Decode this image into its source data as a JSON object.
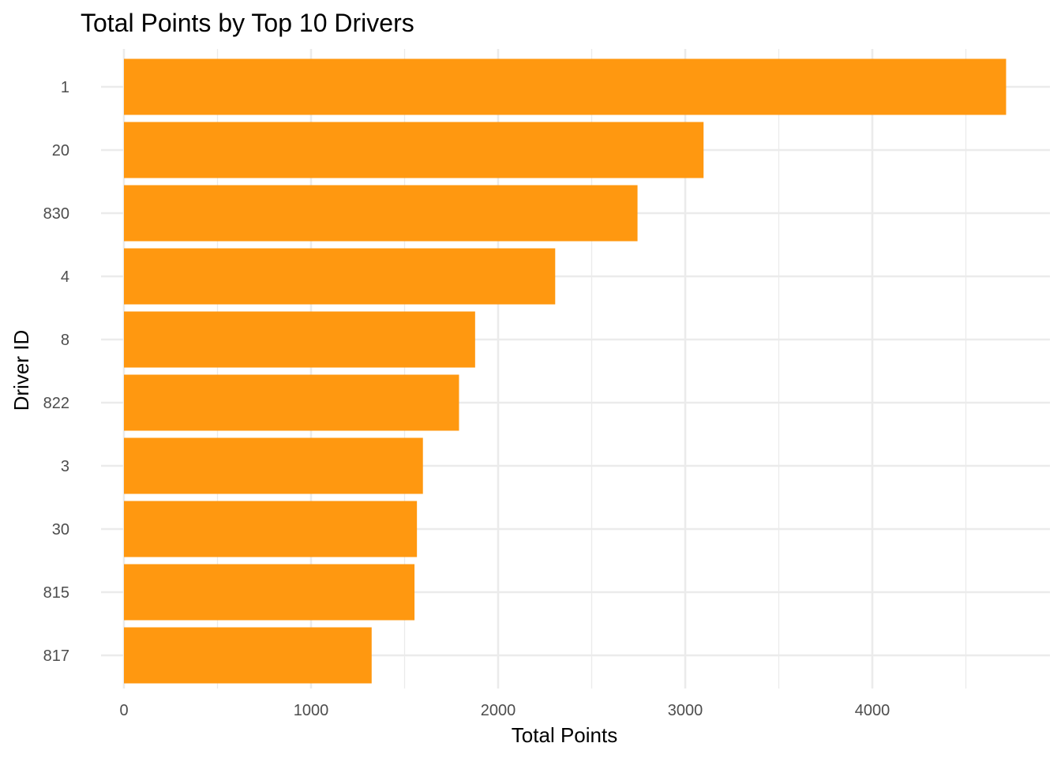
{
  "chart_data": {
    "type": "bar",
    "orientation": "horizontal",
    "title": "Total Points by Top 10 Drivers",
    "xlabel": "Total Points",
    "ylabel": "Driver ID",
    "categories": [
      "1",
      "20",
      "830",
      "4",
      "8",
      "822",
      "3",
      "30",
      "815",
      "817"
    ],
    "values": [
      4715,
      3098,
      2745,
      2305,
      1877,
      1791,
      1598,
      1566,
      1553,
      1324
    ],
    "x_ticks": [
      "0",
      "1000",
      "2000",
      "3000",
      "4000"
    ],
    "x_tick_values": [
      0,
      1000,
      2000,
      3000,
      4000
    ],
    "xlim": [
      0,
      4950
    ],
    "grid": true,
    "legend": "none",
    "bar_color": "#FF9810",
    "grid_color": "#EBEBEB"
  }
}
